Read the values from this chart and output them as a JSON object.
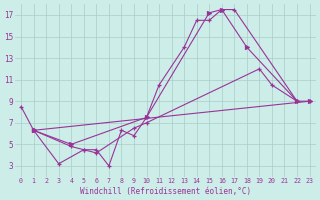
{
  "xlabel": "Windchill (Refroidissement éolien,°C)",
  "bg_color": "#cdeee8",
  "grid_color": "#aaccc8",
  "line_color": "#993399",
  "xlim": [
    -0.5,
    23.5
  ],
  "ylim": [
    2.0,
    18.0
  ],
  "yticks": [
    3,
    5,
    7,
    9,
    11,
    13,
    15,
    17
  ],
  "xticks": [
    0,
    1,
    2,
    3,
    4,
    5,
    6,
    7,
    8,
    9,
    10,
    11,
    12,
    13,
    14,
    15,
    16,
    17,
    18,
    19,
    20,
    21,
    22,
    23
  ],
  "series_data": {
    "line1_x": [
      0,
      1,
      4,
      5,
      6,
      7,
      8,
      9,
      10,
      11,
      13,
      14,
      15,
      16,
      17,
      22,
      23
    ],
    "line1_y": [
      8.5,
      6.3,
      4.8,
      4.5,
      4.5,
      3.0,
      6.3,
      5.8,
      7.5,
      10.5,
      14.0,
      16.5,
      16.5,
      17.5,
      17.5,
      9.0,
      9.0
    ],
    "line2_x": [
      1,
      4,
      10,
      15,
      16,
      18,
      22
    ],
    "line2_y": [
      6.3,
      5.0,
      7.5,
      17.2,
      17.5,
      14.0,
      9.0
    ],
    "line3_x": [
      1,
      3,
      5,
      6,
      9,
      10,
      19,
      20,
      22
    ],
    "line3_y": [
      6.3,
      3.2,
      4.5,
      4.2,
      6.5,
      7.0,
      12.0,
      10.5,
      9.0
    ],
    "line4_x": [
      1,
      23
    ],
    "line4_y": [
      6.3,
      9.0
    ]
  }
}
